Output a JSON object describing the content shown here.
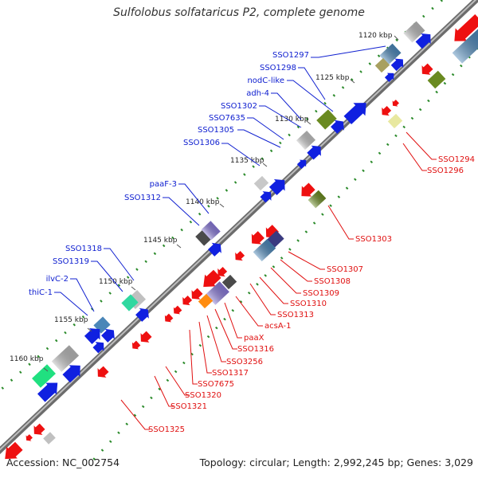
{
  "title": "Sulfolobus solfataricus P2, complete genome",
  "footer": {
    "accession": "Accession: NC_002754",
    "summary": "Topology: circular; Length: 2,992,245 bp; Genes: 3,029"
  },
  "colors": {
    "forward": "#1020e0",
    "reverse": "#ee1010",
    "forward_label": "#1020d0",
    "reverse_label": "#e01010",
    "backbone": "#777777",
    "tick_dots": "#2a8a2a"
  },
  "kbp_ticks": [
    "1120 kbp",
    "1125 kbp",
    "1130 kbp",
    "1135 kbp",
    "1140 kbp",
    "1145 kbp",
    "1150 kbp",
    "1155 kbp",
    "1160 kbp"
  ],
  "forward_labels": [
    "SSO1297",
    "SSO1298",
    "nodC-like",
    "adh-4",
    "SSO1302",
    "SSO7635",
    "SSO1305",
    "SSO1306",
    "paaF-3",
    "SSO1312",
    "SSO1318",
    "SSO1319",
    "ilvC-2",
    "thiC-1"
  ],
  "reverse_labels": [
    "SSO1294",
    "SSO1296",
    "SSO1303",
    "SSO1307",
    "SSO1308",
    "SSO1309",
    "SSO1310",
    "SSO1313",
    "acsA-1",
    "paaX",
    "SSO1316",
    "SSO3256",
    "SSO1317",
    "SSO7675",
    "SSO1320",
    "SSO1321",
    "SSO1325"
  ]
}
